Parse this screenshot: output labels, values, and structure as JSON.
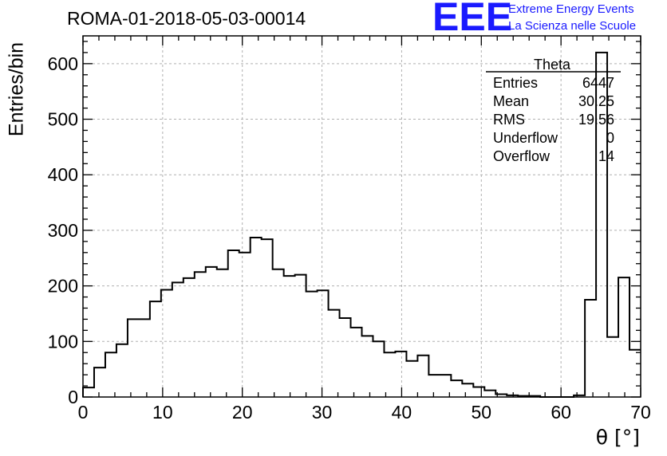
{
  "header": {
    "run_title": "ROMA-01-2018-05-03-00014",
    "logo_text": "EEE",
    "logo_line1": "Extreme Energy Events",
    "logo_line2": "La Scienza nelle Scuole"
  },
  "stats_box": {
    "title": "Theta",
    "rows": [
      {
        "label": "Entries",
        "value": "6447"
      },
      {
        "label": "Mean",
        "value": "30.25"
      },
      {
        "label": "RMS",
        "value": "19.56"
      },
      {
        "label": "Underflow",
        "value": "0"
      },
      {
        "label": "Overflow",
        "value": "14"
      }
    ]
  },
  "chart_data": {
    "type": "bar",
    "histogram": true,
    "xlabel": "θ [°]",
    "ylabel": "Entries/bin",
    "xlim": [
      0,
      70
    ],
    "ylim": [
      0,
      650
    ],
    "x_ticks": [
      0,
      10,
      20,
      30,
      40,
      50,
      60,
      70
    ],
    "y_ticks": [
      0,
      100,
      200,
      300,
      400,
      500,
      600
    ],
    "grid": true,
    "legend": "top-right",
    "bin_width": 1.4,
    "values": [
      17,
      53,
      80,
      95,
      140,
      140,
      172,
      193,
      206,
      214,
      225,
      234,
      230,
      264,
      260,
      287,
      284,
      230,
      218,
      220,
      190,
      192,
      157,
      142,
      125,
      110,
      100,
      80,
      82,
      65,
      75,
      40,
      40,
      30,
      24,
      18,
      12,
      5,
      3,
      2,
      2,
      0,
      0,
      0,
      3,
      175,
      620,
      108,
      215,
      85
    ],
    "colors": {
      "line": "#000000",
      "grid": "#b0b0b0",
      "logo": "#1a1aff"
    }
  }
}
